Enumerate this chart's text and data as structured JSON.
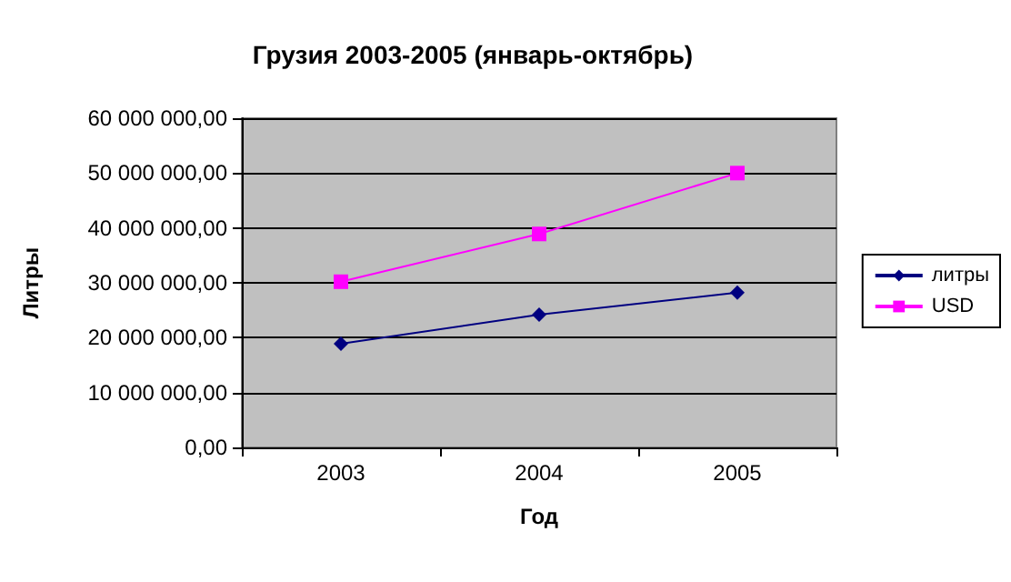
{
  "chart_data": {
    "type": "line",
    "title": "Грузия 2003-2005 (январь-октябрь)",
    "xlabel": "Год",
    "ylabel": "Литры",
    "categories": [
      "2003",
      "2004",
      "2005"
    ],
    "series": [
      {
        "name": "литры",
        "color": "#000080",
        "marker": "diamond",
        "values": [
          18900000,
          24200000,
          28200000
        ]
      },
      {
        "name": "USD",
        "color": "#ff00ff",
        "marker": "square",
        "values": [
          30200000,
          38900000,
          50000000
        ]
      }
    ],
    "ylim": [
      0,
      60000000
    ],
    "yticks": [
      {
        "value": 0,
        "label": "0,00"
      },
      {
        "value": 10000000,
        "label": "10 000 000,00"
      },
      {
        "value": 20000000,
        "label": "20 000 000,00"
      },
      {
        "value": 30000000,
        "label": "30 000 000,00"
      },
      {
        "value": 40000000,
        "label": "40 000 000,00"
      },
      {
        "value": 50000000,
        "label": "50 000 000,00"
      },
      {
        "value": 60000000,
        "label": "60 000 000,00"
      }
    ],
    "grid": "y",
    "legend": "right"
  }
}
